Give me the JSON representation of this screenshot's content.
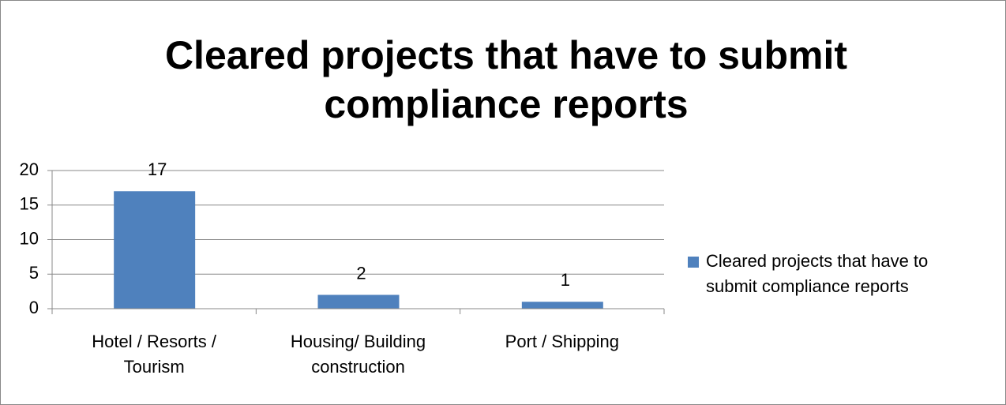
{
  "chart_data": {
    "type": "bar",
    "title": "Cleared projects that have to submit compliance reports",
    "categories": [
      "Hotel / Resorts / Tourism",
      "Housing/ Building construction",
      "Port / Shipping"
    ],
    "series": [
      {
        "name": "Cleared projects that have to submit compliance reports",
        "color": "#4f81bd",
        "values": [
          17,
          2,
          1
        ]
      }
    ],
    "ylim": [
      0,
      20
    ],
    "yticks": [
      0,
      5,
      10,
      15,
      20
    ],
    "grid": true,
    "legend": "right"
  }
}
